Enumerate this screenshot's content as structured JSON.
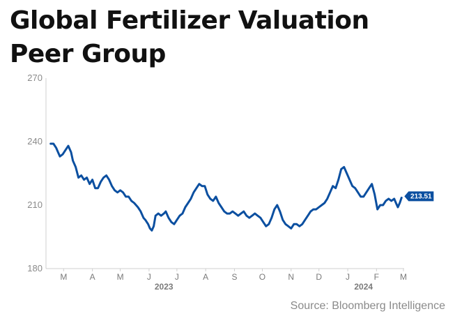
{
  "chart_data": {
    "type": "line",
    "title": "Global Fertilizer Valuation Peer Group",
    "source": "Source: Bloomberg Intelligence",
    "ylim": [
      180,
      270
    ],
    "yticks": [
      180,
      210,
      240,
      270
    ],
    "x_range": [
      "2023-02-24",
      "2024-03-15"
    ],
    "x_month_ticks": [
      {
        "label": "M",
        "date": "2023-03-15"
      },
      {
        "label": "A",
        "date": "2023-04-15"
      },
      {
        "label": "M",
        "date": "2023-05-15"
      },
      {
        "label": "J",
        "date": "2023-06-15"
      },
      {
        "label": "J",
        "date": "2023-07-15"
      },
      {
        "label": "A",
        "date": "2023-08-15"
      },
      {
        "label": "S",
        "date": "2023-09-15"
      },
      {
        "label": "O",
        "date": "2023-10-15"
      },
      {
        "label": "N",
        "date": "2023-11-15"
      },
      {
        "label": "D",
        "date": "2023-12-15"
      },
      {
        "label": "J",
        "date": "2024-01-15"
      },
      {
        "label": "F",
        "date": "2024-02-15"
      },
      {
        "label": "M",
        "date": "2024-03-15"
      }
    ],
    "year_labels": [
      {
        "label": "2023",
        "date": "2023-07-01"
      },
      {
        "label": "2024",
        "date": "2024-02-01"
      }
    ],
    "last_value_label": "213.51",
    "grid": false,
    "legend": "none",
    "series": [
      {
        "color": "#0b4fa0",
        "points": [
          [
            "2023-03-01",
            239
          ],
          [
            "2023-03-04",
            239
          ],
          [
            "2023-03-07",
            237
          ],
          [
            "2023-03-09",
            235
          ],
          [
            "2023-03-11",
            233
          ],
          [
            "2023-03-14",
            234
          ],
          [
            "2023-03-17",
            236
          ],
          [
            "2023-03-20",
            238
          ],
          [
            "2023-03-23",
            235
          ],
          [
            "2023-03-25",
            231
          ],
          [
            "2023-03-28",
            228
          ],
          [
            "2023-03-31",
            223
          ],
          [
            "2023-04-03",
            224
          ],
          [
            "2023-04-06",
            222
          ],
          [
            "2023-04-09",
            223
          ],
          [
            "2023-04-12",
            220
          ],
          [
            "2023-04-15",
            222
          ],
          [
            "2023-04-18",
            218
          ],
          [
            "2023-04-21",
            218
          ],
          [
            "2023-04-24",
            221
          ],
          [
            "2023-04-27",
            223
          ],
          [
            "2023-04-30",
            224
          ],
          [
            "2023-05-03",
            222
          ],
          [
            "2023-05-06",
            219
          ],
          [
            "2023-05-09",
            217
          ],
          [
            "2023-05-12",
            216
          ],
          [
            "2023-05-15",
            217
          ],
          [
            "2023-05-18",
            216
          ],
          [
            "2023-05-21",
            214
          ],
          [
            "2023-05-24",
            214
          ],
          [
            "2023-05-27",
            212
          ],
          [
            "2023-05-30",
            211
          ],
          [
            "2023-06-03",
            209
          ],
          [
            "2023-06-06",
            207
          ],
          [
            "2023-06-09",
            204
          ],
          [
            "2023-06-11",
            203
          ],
          [
            "2023-06-14",
            201
          ],
          [
            "2023-06-16",
            199
          ],
          [
            "2023-06-18",
            198
          ],
          [
            "2023-06-20",
            200
          ],
          [
            "2023-06-22",
            205
          ],
          [
            "2023-06-25",
            206
          ],
          [
            "2023-06-28",
            205
          ],
          [
            "2023-07-01",
            206
          ],
          [
            "2023-07-03",
            207
          ],
          [
            "2023-07-06",
            204
          ],
          [
            "2023-07-09",
            202
          ],
          [
            "2023-07-12",
            201
          ],
          [
            "2023-07-15",
            203
          ],
          [
            "2023-07-18",
            205
          ],
          [
            "2023-07-21",
            206
          ],
          [
            "2023-07-24",
            209
          ],
          [
            "2023-07-27",
            211
          ],
          [
            "2023-07-30",
            213
          ],
          [
            "2023-08-02",
            216
          ],
          [
            "2023-08-05",
            218
          ],
          [
            "2023-08-08",
            220
          ],
          [
            "2023-08-11",
            219
          ],
          [
            "2023-08-14",
            219
          ],
          [
            "2023-08-17",
            215
          ],
          [
            "2023-08-20",
            213
          ],
          [
            "2023-08-23",
            212
          ],
          [
            "2023-08-26",
            214
          ],
          [
            "2023-08-29",
            211
          ],
          [
            "2023-09-01",
            209
          ],
          [
            "2023-09-04",
            207
          ],
          [
            "2023-09-07",
            206
          ],
          [
            "2023-09-10",
            206
          ],
          [
            "2023-09-13",
            207
          ],
          [
            "2023-09-16",
            206
          ],
          [
            "2023-09-19",
            205
          ],
          [
            "2023-09-22",
            206
          ],
          [
            "2023-09-25",
            207
          ],
          [
            "2023-09-28",
            205
          ],
          [
            "2023-10-01",
            204
          ],
          [
            "2023-10-04",
            205
          ],
          [
            "2023-10-07",
            206
          ],
          [
            "2023-10-10",
            205
          ],
          [
            "2023-10-13",
            204
          ],
          [
            "2023-10-16",
            202
          ],
          [
            "2023-10-19",
            200
          ],
          [
            "2023-10-22",
            201
          ],
          [
            "2023-10-25",
            204
          ],
          [
            "2023-10-28",
            208
          ],
          [
            "2023-10-31",
            210
          ],
          [
            "2023-11-03",
            207
          ],
          [
            "2023-11-06",
            203
          ],
          [
            "2023-11-09",
            201
          ],
          [
            "2023-11-12",
            200
          ],
          [
            "2023-11-15",
            199
          ],
          [
            "2023-11-18",
            201
          ],
          [
            "2023-11-21",
            201
          ],
          [
            "2023-11-24",
            200
          ],
          [
            "2023-11-27",
            201
          ],
          [
            "2023-11-30",
            203
          ],
          [
            "2023-12-03",
            205
          ],
          [
            "2023-12-06",
            207
          ],
          [
            "2023-12-09",
            208
          ],
          [
            "2023-12-12",
            208
          ],
          [
            "2023-12-15",
            209
          ],
          [
            "2023-12-18",
            210
          ],
          [
            "2023-12-21",
            211
          ],
          [
            "2023-12-24",
            213
          ],
          [
            "2023-12-27",
            216
          ],
          [
            "2023-12-30",
            219
          ],
          [
            "2024-01-02",
            218
          ],
          [
            "2024-01-05",
            222
          ],
          [
            "2024-01-08",
            227
          ],
          [
            "2024-01-11",
            228
          ],
          [
            "2024-01-14",
            225
          ],
          [
            "2024-01-17",
            222
          ],
          [
            "2024-01-20",
            219
          ],
          [
            "2024-01-23",
            218
          ],
          [
            "2024-01-26",
            216
          ],
          [
            "2024-01-29",
            214
          ],
          [
            "2024-02-01",
            214
          ],
          [
            "2024-02-04",
            216
          ],
          [
            "2024-02-07",
            218
          ],
          [
            "2024-02-10",
            220
          ],
          [
            "2024-02-13",
            215
          ],
          [
            "2024-02-16",
            208
          ],
          [
            "2024-02-19",
            210
          ],
          [
            "2024-02-22",
            210
          ],
          [
            "2024-02-25",
            212
          ],
          [
            "2024-02-28",
            213
          ],
          [
            "2024-03-02",
            212
          ],
          [
            "2024-03-05",
            213
          ],
          [
            "2024-03-07",
            211
          ],
          [
            "2024-03-09",
            209
          ],
          [
            "2024-03-11",
            211
          ],
          [
            "2024-03-13",
            213.51
          ]
        ]
      }
    ]
  }
}
